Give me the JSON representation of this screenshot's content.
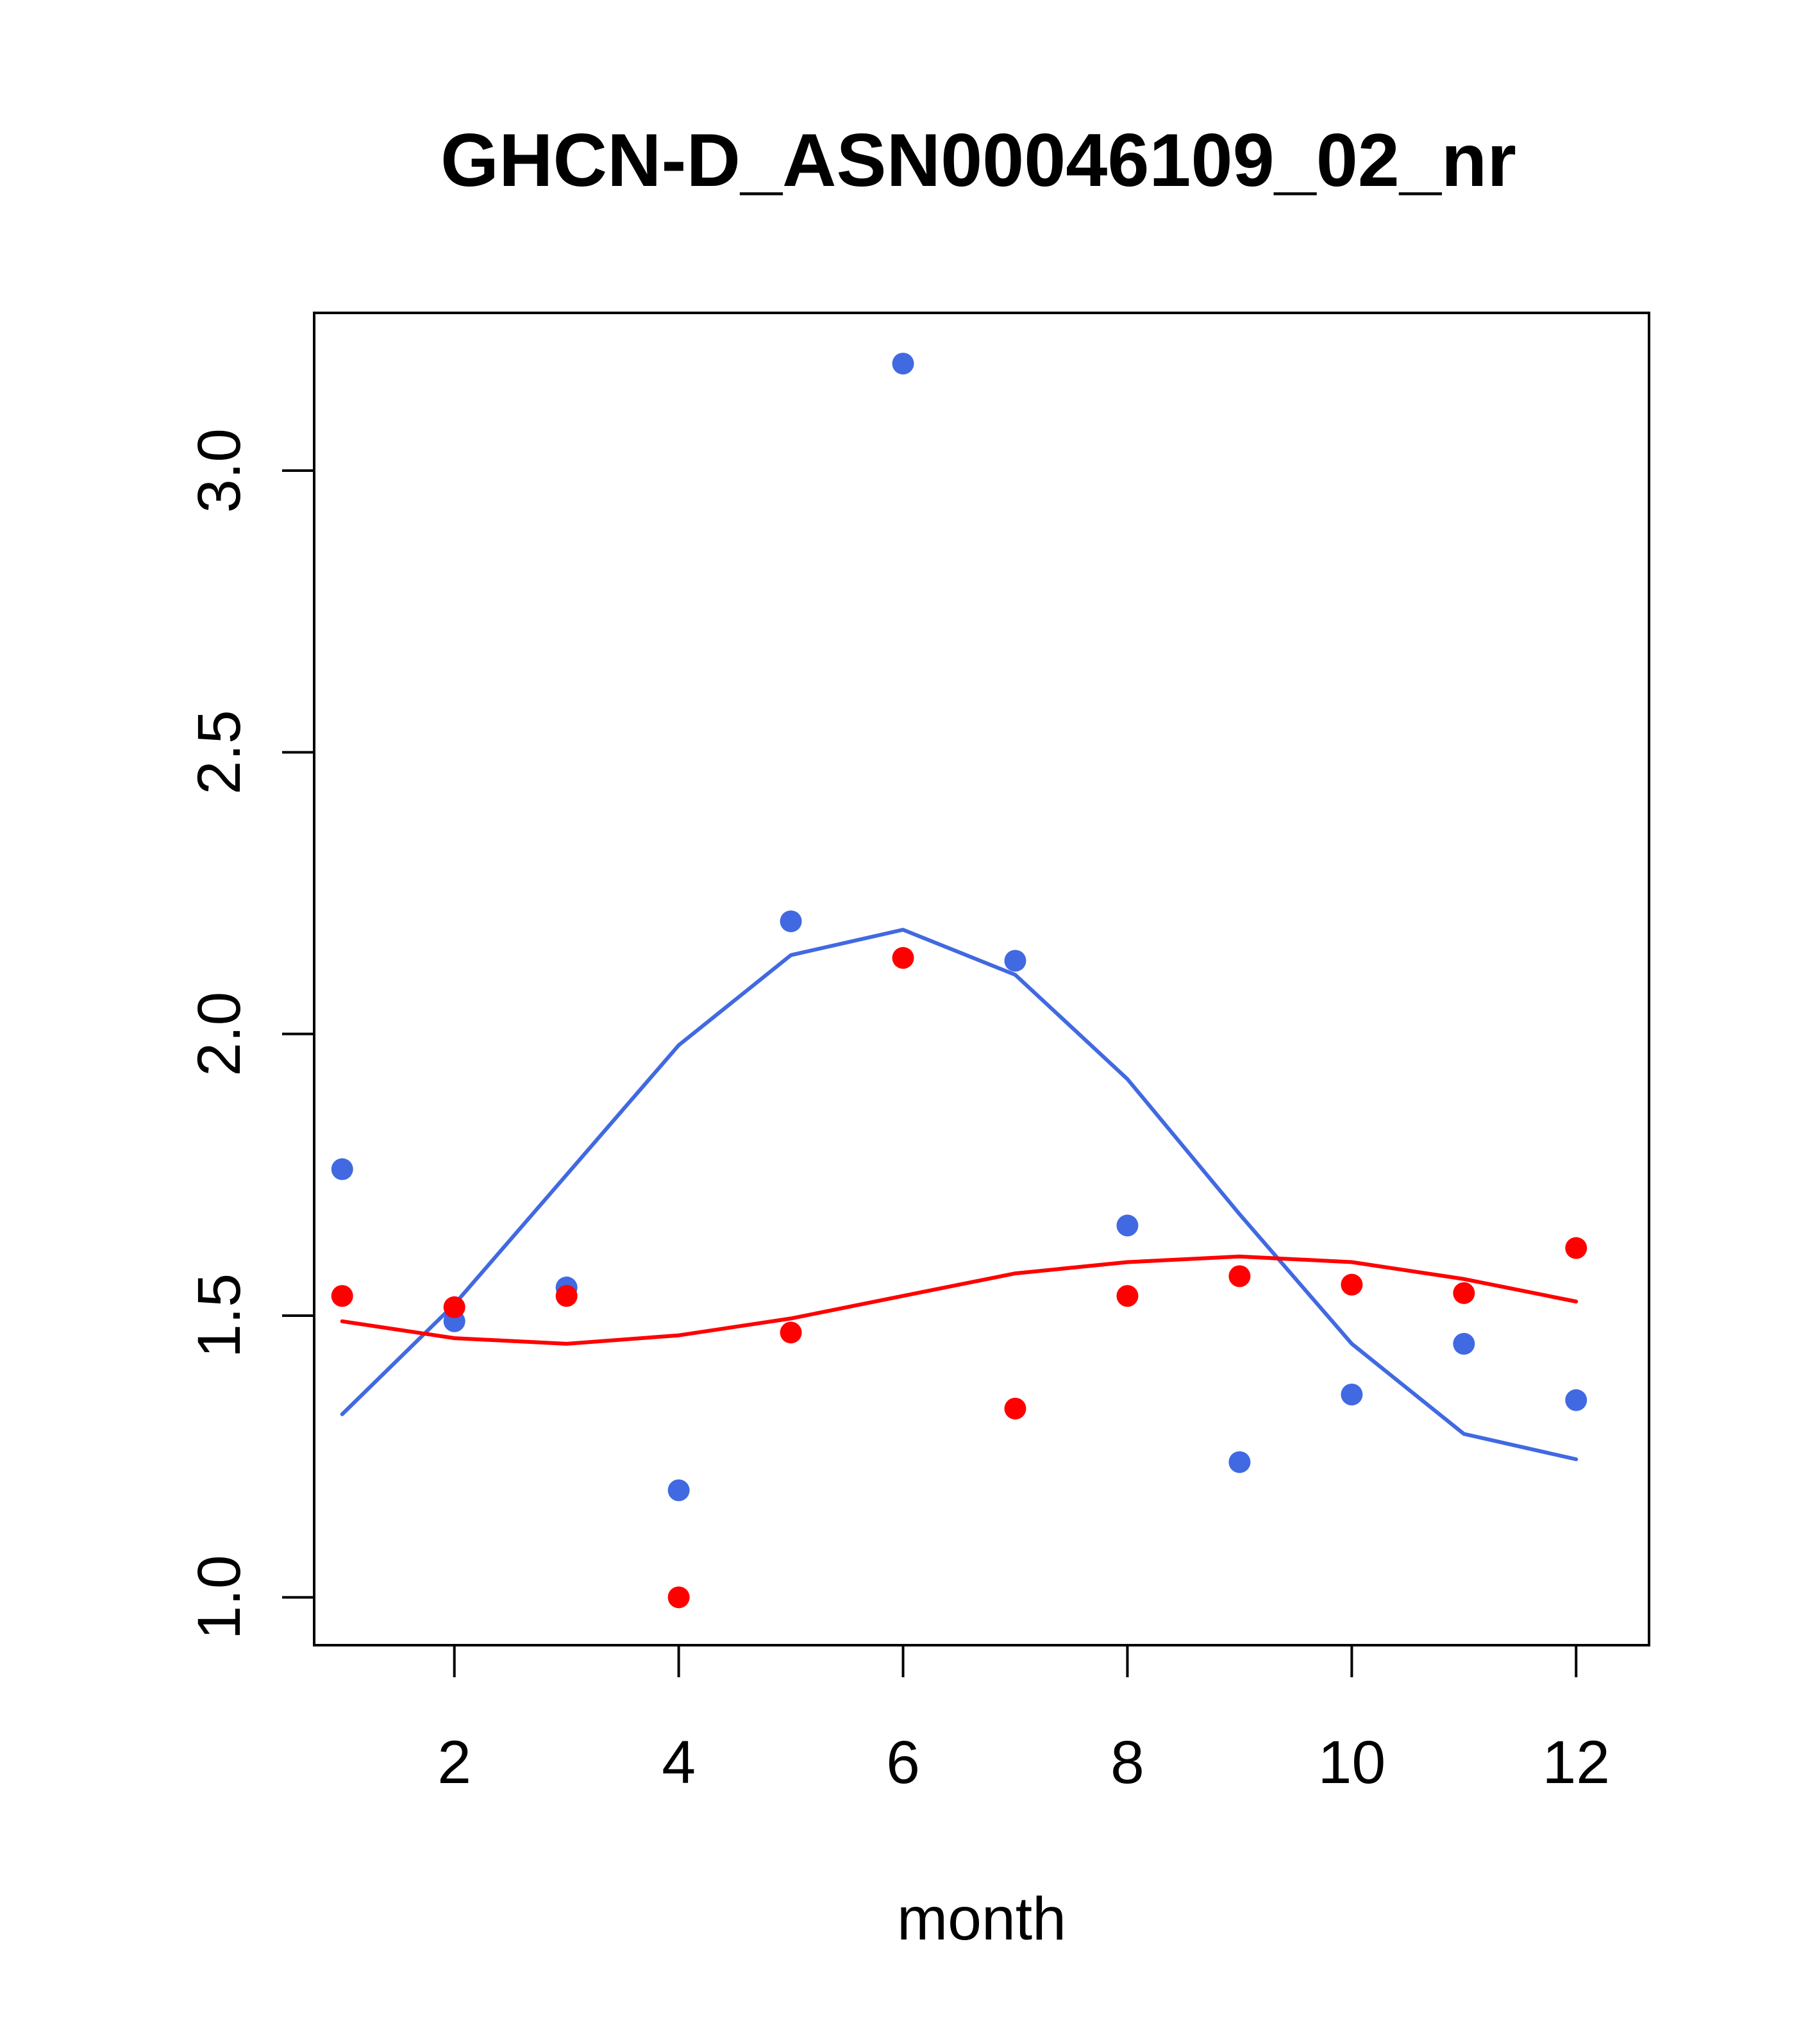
{
  "chart_data": {
    "type": "scatter",
    "title": "GHCN-D_ASN00046109_02_nr",
    "xlabel": "month",
    "ylabel": "",
    "xlim": [
      0.75,
      12.65
    ],
    "ylim": [
      0.915,
      3.28
    ],
    "x_ticks": [
      2,
      4,
      6,
      8,
      10,
      12
    ],
    "x_tick_labels": [
      "2",
      "4",
      "6",
      "8",
      "10",
      "12"
    ],
    "y_ticks": [
      1.0,
      1.5,
      2.0,
      2.5,
      3.0
    ],
    "y_tick_labels": [
      "1.0",
      "1.5",
      "2.0",
      "2.5",
      "3.0"
    ],
    "grid": false,
    "series": [
      {
        "color": "#4169E1",
        "x": [
          1,
          2,
          3,
          4,
          5,
          6,
          7,
          8,
          9,
          10,
          11,
          12
        ],
        "points": [
          1.76,
          1.49,
          1.55,
          1.19,
          2.2,
          3.19,
          2.13,
          1.66,
          1.24,
          1.36,
          1.45,
          1.35
        ],
        "line": [
          1.325,
          1.52,
          1.75,
          1.98,
          2.14,
          2.185,
          2.105,
          1.92,
          1.68,
          1.45,
          1.29,
          1.245
        ]
      },
      {
        "color": "#FF0000",
        "x": [
          1,
          2,
          3,
          4,
          5,
          6,
          7,
          8,
          9,
          10,
          11,
          12
        ],
        "points": [
          1.535,
          1.515,
          1.535,
          1.0,
          1.47,
          2.135,
          1.335,
          1.535,
          1.57,
          1.555,
          1.54,
          1.62
        ],
        "line": [
          1.49,
          1.46,
          1.45,
          1.465,
          1.495,
          1.535,
          1.575,
          1.595,
          1.605,
          1.595,
          1.565,
          1.525
        ]
      }
    ]
  }
}
